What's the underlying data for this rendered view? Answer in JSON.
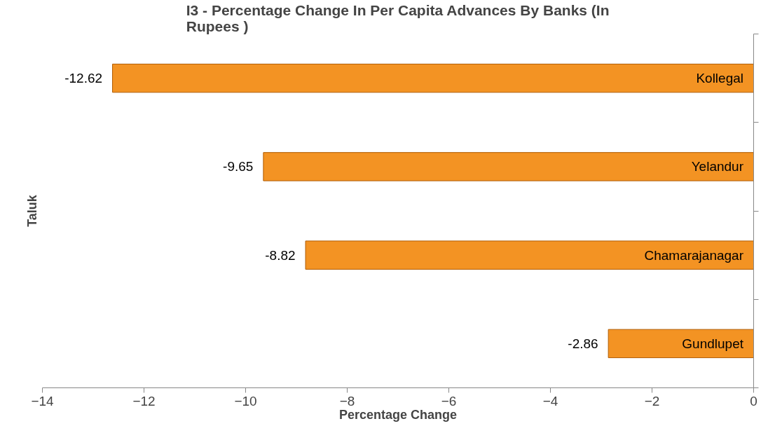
{
  "chart_data": {
    "type": "bar",
    "orientation": "horizontal",
    "title": "I3 - Percentage Change In Per Capita Advances By Banks (In Rupees )",
    "xlabel": "Percentage Change",
    "ylabel": "Taluk",
    "categories": [
      "Kollegal",
      "Yelandur",
      "Chamarajanagar",
      "Gundlupet"
    ],
    "values": [
      -12.62,
      -9.65,
      -8.82,
      -2.86
    ],
    "color": "#f39323",
    "xlim": [
      -14,
      0
    ],
    "xticks": [
      -14,
      -12,
      -10,
      -8,
      -6,
      -4,
      -2,
      0
    ],
    "grid": false,
    "data_labels": true
  }
}
